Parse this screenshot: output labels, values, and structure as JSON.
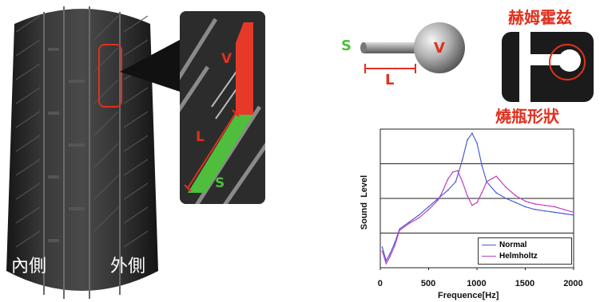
{
  "tire": {
    "inner_label": "內側",
    "outer_label": "外側"
  },
  "groove_zoom": {
    "label_v": "V",
    "label_l": "L",
    "label_s": "S"
  },
  "resonator_model": {
    "label_s": "S",
    "label_v": "V",
    "label_l": "L"
  },
  "helmholtz": {
    "title": "赫姆霍兹",
    "shape_label": "燒瓶形狀"
  },
  "chart_data": {
    "type": "line",
    "xlabel": "Frequence[Hz]",
    "ylabel": "Sound  Level",
    "xlim": [
      0,
      2000
    ],
    "x_ticks": [
      "0",
      "500",
      "1000",
      "1500",
      "2000"
    ],
    "grid": "horizontal",
    "legend_position": "bottom-right",
    "series": [
      {
        "name": "Normal",
        "color": "#4a5fd0",
        "x": [
          20,
          60,
          100,
          150,
          200,
          300,
          400,
          500,
          600,
          700,
          780,
          850,
          900,
          950,
          1000,
          1050,
          1100,
          1200,
          1300,
          1400,
          1500,
          1600,
          1700,
          1800,
          1900,
          2000
        ],
        "y": [
          0.15,
          0.05,
          0.1,
          0.18,
          0.28,
          0.33,
          0.38,
          0.44,
          0.5,
          0.56,
          0.62,
          0.78,
          0.92,
          0.97,
          0.9,
          0.74,
          0.62,
          0.54,
          0.5,
          0.47,
          0.44,
          0.42,
          0.41,
          0.4,
          0.39,
          0.38
        ]
      },
      {
        "name": "Helmholtz",
        "color": "#c040c0",
        "x": [
          20,
          60,
          100,
          150,
          200,
          300,
          400,
          500,
          600,
          650,
          700,
          750,
          800,
          850,
          900,
          950,
          1000,
          1050,
          1100,
          1200,
          1300,
          1400,
          1500,
          1600,
          1700,
          1800,
          1900,
          2000
        ],
        "y": [
          0.12,
          0.03,
          0.08,
          0.16,
          0.27,
          0.32,
          0.36,
          0.42,
          0.49,
          0.56,
          0.64,
          0.69,
          0.7,
          0.62,
          0.52,
          0.45,
          0.47,
          0.54,
          0.62,
          0.66,
          0.58,
          0.52,
          0.48,
          0.46,
          0.45,
          0.44,
          0.42,
          0.4
        ]
      }
    ]
  }
}
